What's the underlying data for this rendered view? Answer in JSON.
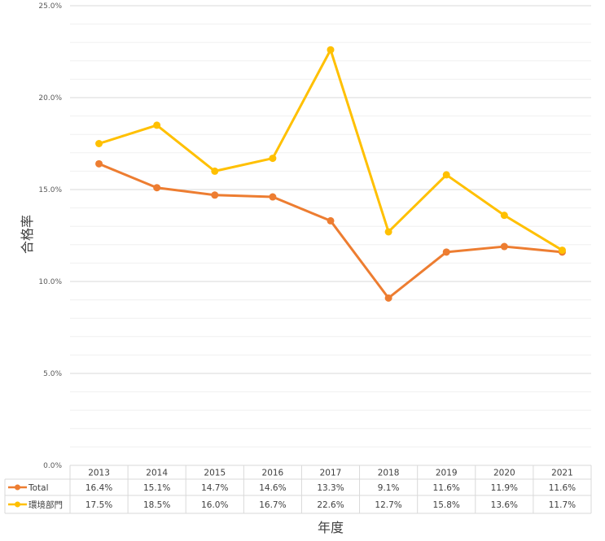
{
  "chart_data": {
    "type": "line",
    "title": "",
    "xlabel": "年度",
    "ylabel": "合格率",
    "categories": [
      "2013",
      "2014",
      "2015",
      "2016",
      "2017",
      "2018",
      "2019",
      "2020",
      "2021"
    ],
    "ylim": [
      0,
      25
    ],
    "y_ticks": [
      "0.0%",
      "5.0%",
      "10.0%",
      "15.0%",
      "20.0%",
      "25.0%"
    ],
    "grid": true,
    "legend": "data-table-left",
    "series": [
      {
        "name": "Total",
        "color": "#ED7D31",
        "values": [
          16.4,
          15.1,
          14.7,
          14.6,
          13.3,
          9.1,
          11.6,
          11.9,
          11.6
        ],
        "labels": [
          "16.4%",
          "15.1%",
          "14.7%",
          "14.6%",
          "13.3%",
          "9.1%",
          "11.6%",
          "11.9%",
          "11.6%"
        ]
      },
      {
        "name": "環境部門",
        "color": "#FFC000",
        "values": [
          17.5,
          18.5,
          16.0,
          16.7,
          22.6,
          12.7,
          15.8,
          13.6,
          11.7
        ],
        "labels": [
          "17.5%",
          "18.5%",
          "16.0%",
          "16.7%",
          "22.6%",
          "12.7%",
          "15.8%",
          "13.6%",
          "11.7%"
        ]
      }
    ]
  }
}
